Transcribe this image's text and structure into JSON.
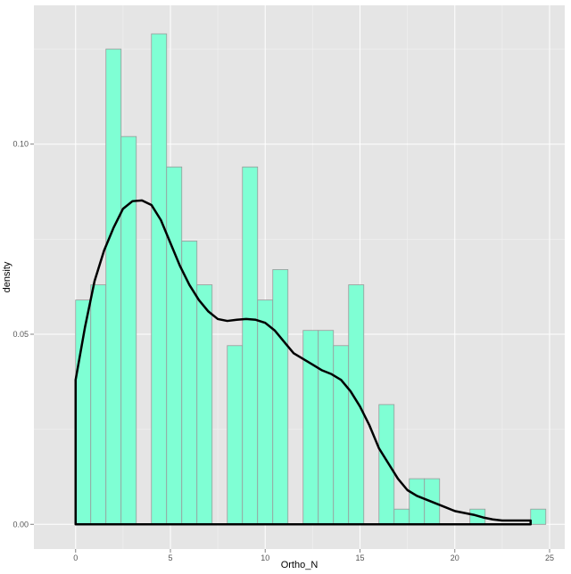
{
  "chart_data": {
    "type": "bar",
    "subtype": "histogram-with-density",
    "xlabel": "Ortho_N",
    "ylabel": "density",
    "xlim": [
      -2.2,
      25.8
    ],
    "ylim": [
      -0.0065,
      0.1365
    ],
    "x_ticks": [
      0,
      5,
      10,
      15,
      20,
      25
    ],
    "x_tick_labels": [
      "0",
      "5",
      "10",
      "15",
      "20",
      "25"
    ],
    "y_ticks": [
      0.0,
      0.05,
      0.1
    ],
    "y_tick_labels": [
      "0.00",
      "0.05",
      "0.10"
    ],
    "bin_width": 0.8,
    "bins": [
      {
        "x0": 0.0,
        "value": 0.059
      },
      {
        "x0": 0.8,
        "value": 0.063
      },
      {
        "x0": 1.6,
        "value": 0.125
      },
      {
        "x0": 2.4,
        "value": 0.102
      },
      {
        "x0": 3.2,
        "value": 0.0
      },
      {
        "x0": 4.0,
        "value": 0.129
      },
      {
        "x0": 4.8,
        "value": 0.094
      },
      {
        "x0": 5.6,
        "value": 0.0745
      },
      {
        "x0": 6.4,
        "value": 0.063
      },
      {
        "x0": 7.2,
        "value": 0.0
      },
      {
        "x0": 8.0,
        "value": 0.047
      },
      {
        "x0": 8.8,
        "value": 0.094
      },
      {
        "x0": 9.6,
        "value": 0.059
      },
      {
        "x0": 10.4,
        "value": 0.067
      },
      {
        "x0": 11.2,
        "value": 0.0
      },
      {
        "x0": 12.0,
        "value": 0.051
      },
      {
        "x0": 12.8,
        "value": 0.051
      },
      {
        "x0": 13.6,
        "value": 0.047
      },
      {
        "x0": 14.4,
        "value": 0.063
      },
      {
        "x0": 15.2,
        "value": 0.0
      },
      {
        "x0": 16.0,
        "value": 0.0315
      },
      {
        "x0": 16.8,
        "value": 0.004
      },
      {
        "x0": 17.6,
        "value": 0.012
      },
      {
        "x0": 18.4,
        "value": 0.012
      },
      {
        "x0": 19.2,
        "value": 0.0
      },
      {
        "x0": 20.0,
        "value": 0.0
      },
      {
        "x0": 20.8,
        "value": 0.004
      },
      {
        "x0": 21.6,
        "value": 0.0
      },
      {
        "x0": 22.4,
        "value": 0.0
      },
      {
        "x0": 23.2,
        "value": 0.0
      },
      {
        "x0": 24.0,
        "value": 0.004
      }
    ],
    "density_curve": {
      "x": [
        0,
        0.5,
        1,
        1.5,
        2,
        2.5,
        3,
        3.5,
        4,
        4.5,
        5,
        5.5,
        6,
        6.5,
        7,
        7.5,
        8,
        8.5,
        9,
        9.5,
        10,
        10.5,
        11,
        11.5,
        12,
        12.5,
        13,
        13.5,
        14,
        14.5,
        15,
        15.5,
        16,
        16.5,
        17,
        17.5,
        18,
        18.5,
        19,
        19.5,
        20,
        20.5,
        21,
        21.5,
        22,
        22.5,
        23,
        23.5,
        24
      ],
      "y": [
        0.038,
        0.052,
        0.064,
        0.072,
        0.078,
        0.083,
        0.085,
        0.0852,
        0.084,
        0.08,
        0.074,
        0.068,
        0.063,
        0.059,
        0.056,
        0.054,
        0.0535,
        0.0538,
        0.054,
        0.0538,
        0.053,
        0.051,
        0.048,
        0.045,
        0.0435,
        0.042,
        0.0405,
        0.0395,
        0.038,
        0.035,
        0.031,
        0.026,
        0.02,
        0.016,
        0.012,
        0.009,
        0.0075,
        0.0065,
        0.0055,
        0.0045,
        0.0035,
        0.003,
        0.0025,
        0.0018,
        0.0013,
        0.001,
        0.001,
        0.001,
        0.001
      ]
    },
    "colors": {
      "panel_background": "#e5e5e5",
      "grid_major": "#ffffff",
      "grid_minor": "#f2f2f2",
      "bar_fill": "#7fffd4",
      "bar_stroke": "#999999",
      "density_line": "#000000"
    },
    "grid": true,
    "legend": "none"
  }
}
